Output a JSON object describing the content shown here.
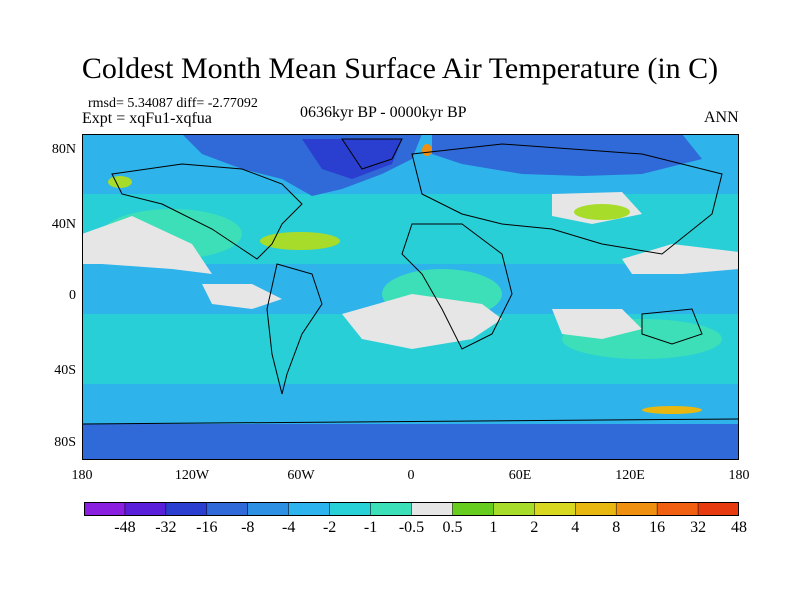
{
  "title": "Coldest Month Mean Surface Air Temperature (in C)",
  "stats": "rmsd= 5.34087 diff= -2.77092",
  "expt": "Expt = xqFu1-xqfua",
  "period": "0636kyr BP - 0000kyr BP",
  "season": "ANN",
  "axes": {
    "y_ticks": [
      "80N",
      "40N",
      "0",
      "40S",
      "80S"
    ],
    "x_ticks": [
      "180",
      "120W",
      "60W",
      "0",
      "60E",
      "120E",
      "180"
    ]
  },
  "colorbar": {
    "labels": [
      "-48",
      "-32",
      "-16",
      "-8",
      "-4",
      "-2",
      "-1",
      "-0.5",
      "0.5",
      "1",
      "2",
      "4",
      "8",
      "16",
      "32",
      "48"
    ],
    "colors": [
      "#8a1fe0",
      "#5a1fd8",
      "#2a3fd0",
      "#2f6ad8",
      "#2e90e2",
      "#2db4ee",
      "#28d0d8",
      "#3ce0b8",
      "#e6e6e6",
      "#66cc1e",
      "#a8dc2a",
      "#d8d820",
      "#e8b810",
      "#f09010",
      "#f06010",
      "#e83a10"
    ]
  }
}
